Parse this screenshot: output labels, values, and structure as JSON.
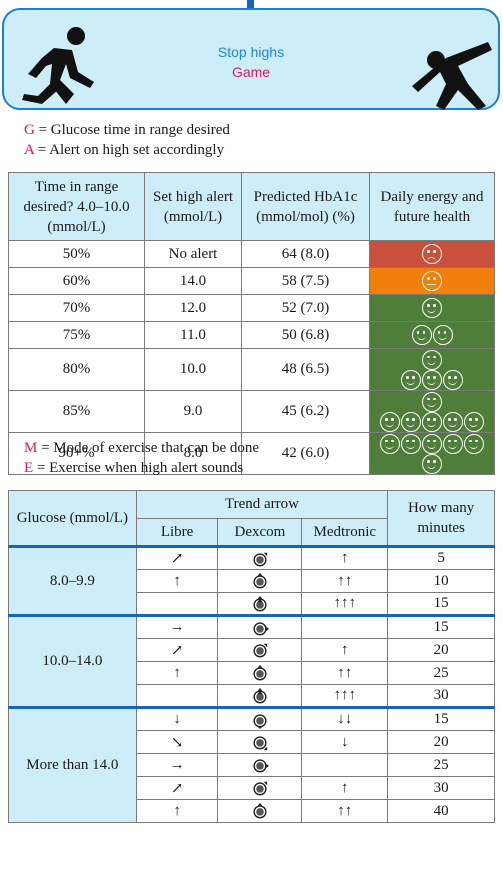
{
  "header": {
    "title": "Stop highs",
    "subtitle": "Game"
  },
  "legend1": [
    {
      "key": "G",
      "text": " = Glucose time in range desired"
    },
    {
      "key": "A",
      "text": " = Alert on high set accordingly"
    }
  ],
  "table1": {
    "headers": [
      "Time in range desired? 4.0–10.0 (mmol/L)",
      "Set high alert (mmol/L)",
      "Predicted HbA1c (mmol/mol) (%)",
      "Daily energy and future health"
    ],
    "rows": [
      {
        "tir": "50%",
        "alert": "No alert",
        "hba1c": "64 (8.0)",
        "color": "#c9503a",
        "faces": [
          1
        ],
        "mood": "sad"
      },
      {
        "tir": "60%",
        "alert": "14.0",
        "hba1c": "58 (7.5)",
        "color": "#f07f0c",
        "faces": [
          1
        ],
        "mood": "neutral"
      },
      {
        "tir": "70%",
        "alert": "12.0",
        "hba1c": "52 (7.0)",
        "color": "#4f7d3a",
        "faces": [
          1
        ],
        "mood": "happy"
      },
      {
        "tir": "75%",
        "alert": "11.0",
        "hba1c": "50 (6.8)",
        "color": "#4f7d3a",
        "faces": [
          2
        ],
        "mood": "happy"
      },
      {
        "tir": "80%",
        "alert": "10.0",
        "hba1c": "48 (6.5)",
        "color": "#4f7d3a",
        "faces": [
          1,
          3
        ],
        "mood": "happy"
      },
      {
        "tir": "85%",
        "alert": "9.0",
        "hba1c": "45 (6.2)",
        "color": "#4f7d3a",
        "faces": [
          1,
          5
        ],
        "mood": "happy"
      },
      {
        "tir": "90+%",
        "alert": "8.0",
        "hba1c": "42 (6.0)",
        "color": "#4f7d3a",
        "faces": [
          6
        ],
        "mood": "happy"
      }
    ]
  },
  "legend2": [
    {
      "key": "M",
      "text": " = Mode of exercise that can be done"
    },
    {
      "key": "E",
      "text": " = Exercise when high alert sounds"
    }
  ],
  "table2": {
    "h_glucose": "Glucose (mmol/L)",
    "h_trend": "Trend arrow",
    "h_minutes": "How many minutes",
    "h_libre": "Libre",
    "h_dexcom": "Dexcom",
    "h_medtronic": "Medtronic",
    "groups": [
      {
        "glucose": "8.0–9.9",
        "rows": [
          {
            "libre": "↗",
            "dex": "ne",
            "med": "↑",
            "min": "5"
          },
          {
            "libre": "↑",
            "dex": "n",
            "med": "↑↑",
            "min": "10"
          },
          {
            "libre": "",
            "dex": "nn",
            "med": "↑↑↑",
            "min": "15"
          }
        ]
      },
      {
        "glucose": "10.0–14.0",
        "rows": [
          {
            "libre": "→",
            "dex": "e",
            "med": "",
            "min": "15"
          },
          {
            "libre": "↗",
            "dex": "ne",
            "med": "↑",
            "min": "20"
          },
          {
            "libre": "↑",
            "dex": "n",
            "med": "↑↑",
            "min": "25"
          },
          {
            "libre": "",
            "dex": "nn",
            "med": "↑↑↑",
            "min": "30"
          }
        ]
      },
      {
        "glucose": "More than 14.0",
        "rows": [
          {
            "libre": "↓",
            "dex": "s",
            "med": "↓↓",
            "min": "15"
          },
          {
            "libre": "↘",
            "dex": "se",
            "med": "↓",
            "min": "20"
          },
          {
            "libre": "→",
            "dex": "e",
            "med": "",
            "min": "25"
          },
          {
            "libre": "↗",
            "dex": "ne",
            "med": "↑",
            "min": "30"
          },
          {
            "libre": "↑",
            "dex": "n",
            "med": "↑↑",
            "min": "40"
          }
        ]
      }
    ]
  }
}
